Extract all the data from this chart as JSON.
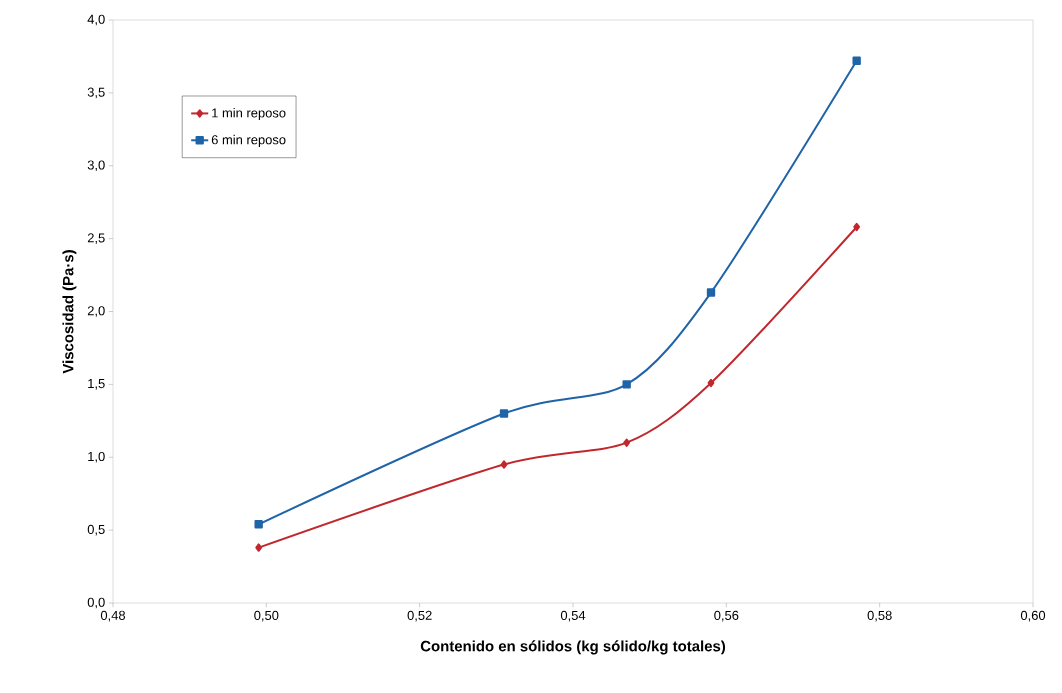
{
  "chart_data": {
    "type": "line",
    "xlabel": "Contenido en sólidos (kg sólido/kg totales)",
    "ylabel": "Viscosidad (Pa·s)",
    "x": [
      0.499,
      0.531,
      0.547,
      0.558,
      0.577
    ],
    "series": [
      {
        "name": "1 min reposo",
        "color": "#c0282d",
        "marker": "diamond",
        "values": [
          0.38,
          0.95,
          1.1,
          1.51,
          2.58
        ]
      },
      {
        "name": "6 min reposo",
        "color": "#1f64a8",
        "marker": "square",
        "values": [
          0.54,
          1.3,
          1.5,
          2.13,
          3.72
        ]
      }
    ],
    "xlim": [
      0.48,
      0.6
    ],
    "xticks": [
      {
        "value": 0.48,
        "label": "0,48"
      },
      {
        "value": 0.5,
        "label": "0,50"
      },
      {
        "value": 0.52,
        "label": "0,52"
      },
      {
        "value": 0.54,
        "label": "0,54"
      },
      {
        "value": 0.56,
        "label": "0,56"
      },
      {
        "value": 0.58,
        "label": "0,58"
      },
      {
        "value": 0.6,
        "label": "0,60"
      }
    ],
    "ylim": [
      0,
      4
    ],
    "yticks": [
      {
        "value": 0,
        "label": "0,0"
      },
      {
        "value": 0.5,
        "label": "0,5"
      },
      {
        "value": 1,
        "label": "1,0"
      },
      {
        "value": 1.5,
        "label": "1,5"
      },
      {
        "value": 2,
        "label": "2,0"
      },
      {
        "value": 2.5,
        "label": "2,5"
      },
      {
        "value": 3,
        "label": "3,0"
      },
      {
        "value": 3.5,
        "label": "3,5"
      },
      {
        "value": 4,
        "label": "4,0"
      }
    ],
    "grid": false,
    "legend": "top left",
    "line_style": "solid"
  }
}
